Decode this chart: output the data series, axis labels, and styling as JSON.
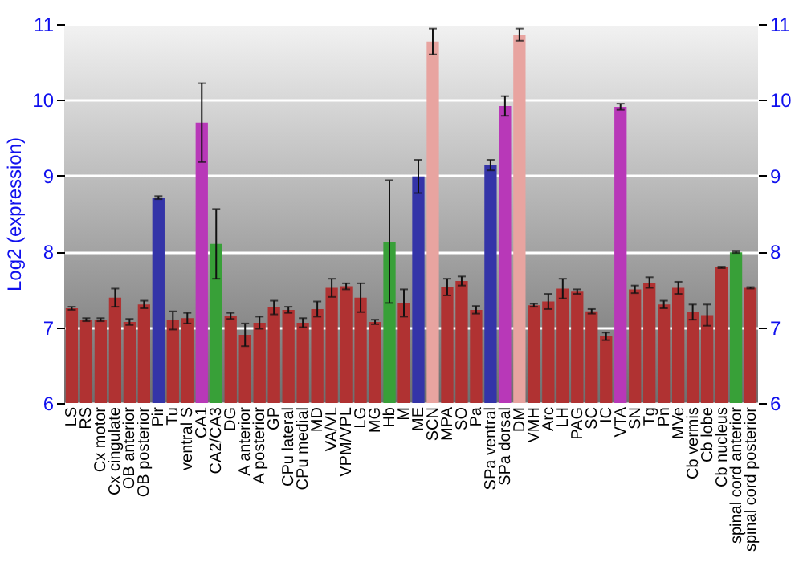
{
  "chart_data": {
    "type": "bar",
    "ylabel": "Log2 (expression)",
    "categories": [
      "LS",
      "RS",
      "Cx motor",
      "Cx cingulate",
      "OB anterior",
      "OB posterior",
      "Pir",
      "Tu",
      "ventral S",
      "CA1",
      "CA2/CA3",
      "DG",
      "A anterior",
      "A posterior",
      "GP",
      "CPu lateral",
      "CPu medial",
      "MD",
      "VA/VL",
      "VPM/VPL",
      "LG",
      "MG",
      "Hb",
      "M",
      "ME",
      "SCN",
      "MPA",
      "SO",
      "Pa",
      "SPa ventral",
      "SPa dorsal",
      "DM",
      "VMH",
      "Arc",
      "LH",
      "PAG",
      "SC",
      "IC",
      "VTA",
      "SN",
      "Tg",
      "Pn",
      "MVe",
      "Cb vermis",
      "Cb lobe",
      "Cb nucleus",
      "spinal cord anterior",
      "spinal cord posterior"
    ],
    "values": [
      7.25,
      7.1,
      7.1,
      7.39,
      7.07,
      7.3,
      8.71,
      7.09,
      7.12,
      9.7,
      8.1,
      7.15,
      6.9,
      7.06,
      7.26,
      7.23,
      7.06,
      7.24,
      7.52,
      7.54,
      7.39,
      7.07,
      8.13,
      7.32,
      8.99,
      10.77,
      7.53,
      7.61,
      7.23,
      9.14,
      9.92,
      10.86,
      7.29,
      7.34,
      7.51,
      7.47,
      7.21,
      6.88,
      9.91,
      7.5,
      7.59,
      7.3,
      7.52,
      7.2,
      7.16,
      7.79,
      7.99,
      7.52
    ],
    "errors": [
      0.02,
      0.02,
      0.02,
      0.12,
      0.04,
      0.05,
      0.02,
      0.12,
      0.07,
      0.52,
      0.46,
      0.04,
      0.15,
      0.08,
      0.09,
      0.04,
      0.06,
      0.1,
      0.12,
      0.04,
      0.19,
      0.03,
      0.81,
      0.18,
      0.22,
      0.17,
      0.11,
      0.06,
      0.05,
      0.07,
      0.13,
      0.08,
      0.02,
      0.1,
      0.13,
      0.03,
      0.03,
      0.05,
      0.04,
      0.05,
      0.07,
      0.05,
      0.08,
      0.1,
      0.14,
      0.01,
      0.01,
      0.01
    ],
    "colors": [
      "#b03232",
      "#b03232",
      "#b03232",
      "#b03232",
      "#b03232",
      "#b03232",
      "#3434a8",
      "#b03232",
      "#b03232",
      "#b838b8",
      "#38a038",
      "#b03232",
      "#b03232",
      "#b03232",
      "#b03232",
      "#b03232",
      "#b03232",
      "#b03232",
      "#b03232",
      "#b03232",
      "#b03232",
      "#b03232",
      "#38a038",
      "#b03232",
      "#3434a8",
      "#e8a4a0",
      "#b03232",
      "#b03232",
      "#b03232",
      "#3434a8",
      "#b838b8",
      "#e8a4a0",
      "#b03232",
      "#b03232",
      "#b03232",
      "#b03232",
      "#b03232",
      "#b03232",
      "#b838b8",
      "#b03232",
      "#b03232",
      "#b03232",
      "#b03232",
      "#b03232",
      "#b03232",
      "#b03232",
      "#38a038",
      "#b03232"
    ],
    "ylim": [
      6,
      11
    ],
    "yticks": [
      6,
      7,
      8,
      9,
      10,
      11
    ],
    "y2lim": [
      6,
      11
    ],
    "y2ticks": [
      6,
      7,
      8,
      9,
      10,
      11
    ],
    "grid": "y"
  }
}
